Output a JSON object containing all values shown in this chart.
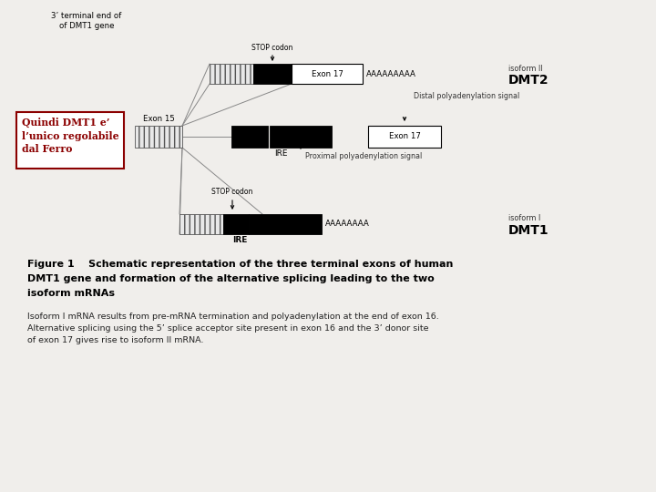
{
  "bg_color": "#f0eeeb",
  "annotation_topleft": "3’ terminal end of\nof DMT1 gene",
  "dmt2_label": "DMT2",
  "dmt1_label": "DMT1",
  "isoform2_label": "isoform II",
  "isoform1_label": "isoform I",
  "exon15_label": "Exon 15",
  "exon17_label": "Exon 17",
  "ire_label": "IRE",
  "ire_label2": "IRE",
  "stop_codon1": "STOP codon",
  "stop_codon2": "STOP codon",
  "poly_a_top": "AAAAAAAAA",
  "poly_a_bottom": "AAAAAAAA",
  "distal_poly": "Distal polyadenylation signal",
  "proximal_poly": "Proximal polyadenylation signal",
  "box_label_color": "#8b0000",
  "box_outline_color": "#8b0000",
  "fig_caption_bold": "Figure 1    Schematic representation of the three terminal exons of human DMT1 gene and formation of the alternative splicing leading to the two isoform mRNAs",
  "fig_body": "Isoform I mRNA results from pre-mRNA termination and polyadenylation at the end of exon 16. Alternative splicing using the 5’ splice acceptor site present in exon 16 and the 3’ donor site of exon 17 gives rise to isoform II mRNA."
}
